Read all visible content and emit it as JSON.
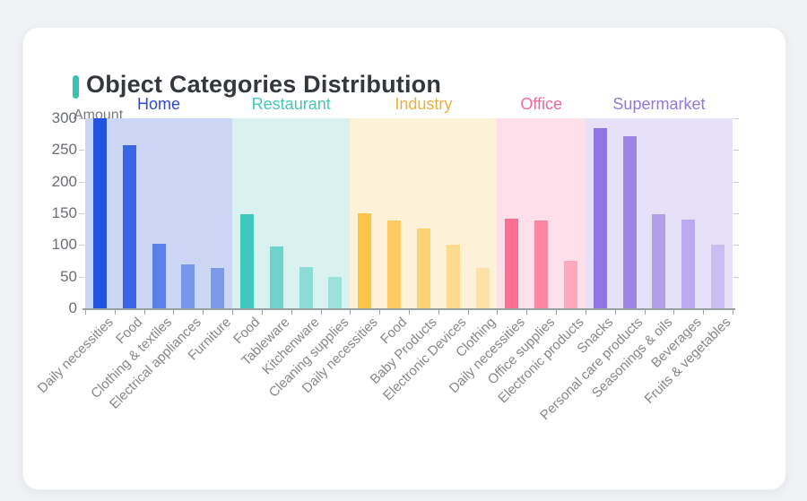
{
  "page": {
    "background_color": "#f0f2f4"
  },
  "card": {
    "background_color": "#ffffff"
  },
  "header": {
    "title": "Object Categories Distribution",
    "accent_color": "#35c3b2",
    "title_color": "#34373c"
  },
  "chart_data": {
    "type": "bar",
    "title": "Object Categories Distribution",
    "xlabel": "",
    "ylabel": "Amount",
    "ylim": [
      0,
      300
    ],
    "y_ticks": [
      0,
      50,
      100,
      150,
      200,
      250,
      300
    ],
    "grid": false,
    "legend_position": "group headers above plot",
    "x_label_rotation_deg": 45,
    "groups": [
      {
        "name": "Home",
        "label_color": "#2b4ae0",
        "band_color": "#ccd7f5",
        "bar_color": "#2253e0",
        "bar_opacities": [
          1,
          0.86,
          0.66,
          0.5,
          0.47
        ],
        "categories": [
          "Daily necessities",
          "Food",
          "Clothing & textiles",
          "Electrical appliances",
          "Furniture"
        ],
        "values": [
          300,
          258,
          102,
          69,
          64
        ]
      },
      {
        "name": "Restaurant",
        "label_color": "#41cbb4",
        "band_color": "#d9f1ef",
        "bar_color": "#3fc8bc",
        "bar_opacities": [
          1,
          0.7,
          0.5,
          0.4
        ],
        "categories": [
          "Food",
          "Tableware",
          "Kitchenware",
          "Cleaning supplies"
        ],
        "values": [
          148,
          97,
          65,
          50
        ]
      },
      {
        "name": "Industry",
        "label_color": "#eab03e",
        "band_color": "#fdf2d8",
        "bar_color": "#fec447",
        "bar_opacities": [
          1,
          0.83,
          0.7,
          0.52,
          0.35
        ],
        "categories": [
          "Daily necessities",
          "Food",
          "Baby Products",
          "Electronic Devices",
          "Clothing"
        ],
        "values": [
          150,
          138,
          126,
          100,
          64
        ]
      },
      {
        "name": "Office",
        "label_color": "#f4679a",
        "band_color": "#fde0e9",
        "bar_color": "#fb6f92",
        "bar_opacities": [
          1,
          0.8,
          0.5
        ],
        "categories": [
          "Daily necessities",
          "Office supplies",
          "Electronic products"
        ],
        "values": [
          142,
          138,
          75
        ]
      },
      {
        "name": "Supermarket",
        "label_color": "#8f79e0",
        "band_color": "#e6e1f8",
        "bar_color": "#8f75e3",
        "bar_opacities": [
          1,
          0.85,
          0.6,
          0.5,
          0.33
        ],
        "categories": [
          "Snacks",
          "Personal care products",
          "Seasonings & oils",
          "Beverages",
          "Fruits & vegetables"
        ],
        "values": [
          285,
          272,
          148,
          140,
          101
        ]
      }
    ],
    "axis": {
      "line_color": "#9ba0a5",
      "y_tick_label_color": "#6b6e73",
      "x_tick_label_color": "#85878b",
      "axis_name_color": "#77797d"
    }
  }
}
